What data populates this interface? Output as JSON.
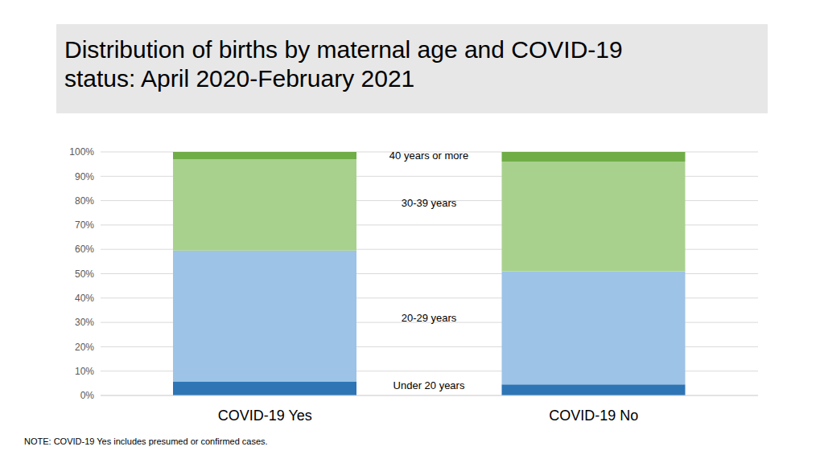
{
  "chart_data": {
    "type": "bar",
    "title": "Distribution of births by maternal age and COVID-19\nstatus: April 2020-February 2021",
    "categories": [
      "COVID-19 Yes",
      "COVID-19 No"
    ],
    "series": [
      {
        "name": "Under 20 years",
        "color": "#2e75b6",
        "values": [
          5.8,
          4.5
        ]
      },
      {
        "name": "20-29 years",
        "color": "#9dc3e6",
        "values": [
          53.7,
          46.5
        ]
      },
      {
        "name": "30-39 years",
        "color": "#a9d18e",
        "values": [
          37.5,
          45
        ]
      },
      {
        "name": "40 years or more",
        "color": "#70ad47",
        "values": [
          3,
          4
        ]
      }
    ],
    "stacked": true,
    "ylim": [
      0,
      100
    ],
    "yticks": [
      {
        "value": 0,
        "label": "0%"
      },
      {
        "value": 10,
        "label": "10%"
      },
      {
        "value": 20,
        "label": "20%"
      },
      {
        "value": 30,
        "label": "30%"
      },
      {
        "value": 40,
        "label": "40%"
      },
      {
        "value": 50,
        "label": "50%"
      },
      {
        "value": 60,
        "label": "60%"
      },
      {
        "value": 70,
        "label": "70%"
      },
      {
        "value": 80,
        "label": "80%"
      },
      {
        "value": 90,
        "label": "90%"
      },
      {
        "value": 100,
        "label": "100%"
      }
    ],
    "grid": true,
    "annotations": [
      "NOTE: COVID-19 Yes includes presumed or confirmed cases."
    ]
  }
}
